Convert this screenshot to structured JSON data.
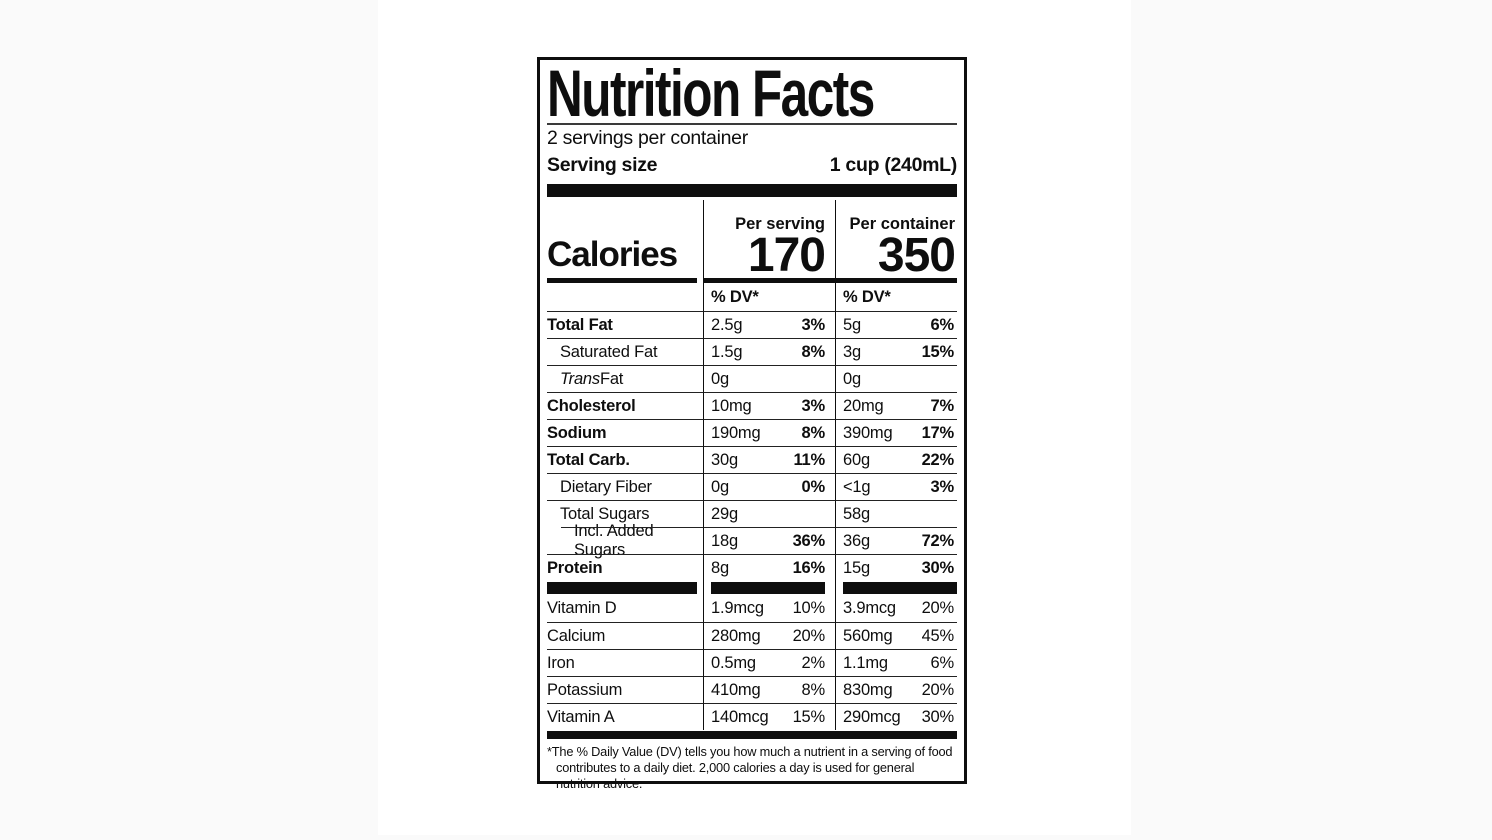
{
  "label": {
    "title": "Nutrition Facts",
    "servings_per_container": "2 servings per container",
    "serving_size_label": "Serving size",
    "serving_size_value": "1 cup (240mL)",
    "calories": {
      "label": "Calories",
      "per_serving_header": "Per serving",
      "per_container_header": "Per container",
      "per_serving_value": "170",
      "per_container_value": "350"
    },
    "dv_header": "% DV*",
    "rows": [
      {
        "name": "Total Fat",
        "serving_amount": "2.5g",
        "serving_dv": "3%",
        "container_amount": "5g",
        "container_dv": "6%"
      },
      {
        "name": "Saturated Fat",
        "serving_amount": "1.5g",
        "serving_dv": "8%",
        "container_amount": "3g",
        "container_dv": "15%"
      },
      {
        "name_italic": "Trans",
        "name": " Fat",
        "serving_amount": "0g",
        "serving_dv": "",
        "container_amount": "0g",
        "container_dv": ""
      },
      {
        "name": "Cholesterol",
        "serving_amount": "10mg",
        "serving_dv": "3%",
        "container_amount": "20mg",
        "container_dv": "7%"
      },
      {
        "name": "Sodium",
        "serving_amount": "190mg",
        "serving_dv": "8%",
        "container_amount": "390mg",
        "container_dv": "17%"
      },
      {
        "name": "Total Carb.",
        "serving_amount": "30g",
        "serving_dv": "11%",
        "container_amount": "60g",
        "container_dv": "22%"
      },
      {
        "name": "Dietary Fiber",
        "serving_amount": "0g",
        "serving_dv": "0%",
        "container_amount": "<1g",
        "container_dv": "3%"
      },
      {
        "name": "Total Sugars",
        "serving_amount": "29g",
        "serving_dv": "",
        "container_amount": "58g",
        "container_dv": ""
      },
      {
        "name": "Incl. Added Sugars",
        "serving_amount": "18g",
        "serving_dv": "36%",
        "container_amount": "36g",
        "container_dv": "72%"
      },
      {
        "name": "Protein",
        "serving_amount": "8g",
        "serving_dv": "16%",
        "container_amount": "15g",
        "container_dv": "30%"
      },
      {
        "name": "Vitamin D",
        "serving_amount": "1.9mcg",
        "serving_dv": "10%",
        "container_amount": "3.9mcg",
        "container_dv": "20%"
      },
      {
        "name": "Calcium",
        "serving_amount": "280mg",
        "serving_dv": "20%",
        "container_amount": "560mg",
        "container_dv": "45%"
      },
      {
        "name": "Iron",
        "serving_amount": "0.5mg",
        "serving_dv": "2%",
        "container_amount": "1.1mg",
        "container_dv": "6%"
      },
      {
        "name": "Potassium",
        "serving_amount": "410mg",
        "serving_dv": "8%",
        "container_amount": "830mg",
        "container_dv": "20%"
      },
      {
        "name": "Vitamin A",
        "serving_amount": "140mcg",
        "serving_dv": "15%",
        "container_amount": "290mcg",
        "container_dv": "30%"
      }
    ],
    "footnote": "*The % Daily Value (DV) tells you how much a nutrient in a serving of food contributes to a daily diet. 2,000 calories a day is used for general nutrition advice.",
    "colors": {
      "ink": "#0e0e0e",
      "paper": "#ffffff",
      "background": "#fafafa"
    }
  }
}
